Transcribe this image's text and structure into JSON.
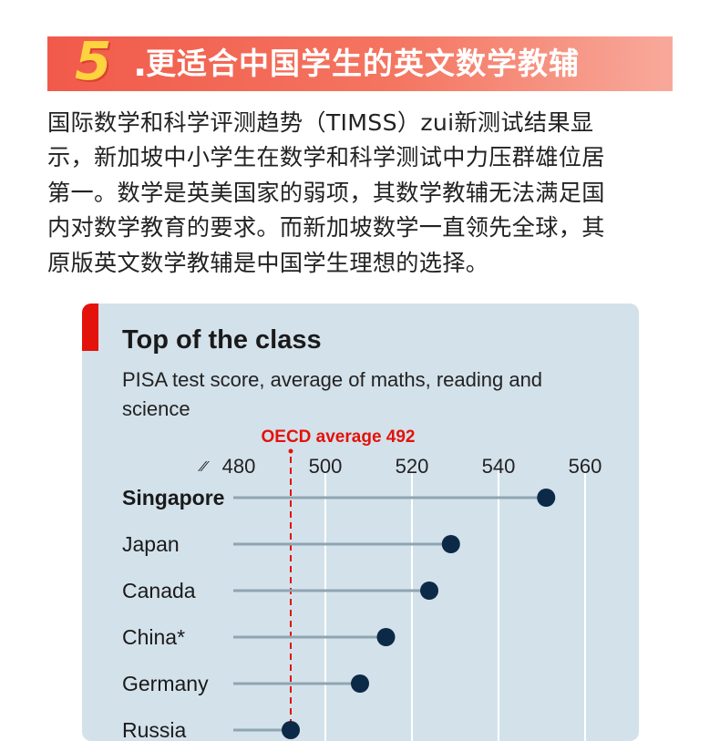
{
  "heading": {
    "number": "5",
    "dot": ".",
    "title": "更适合中国学生的英文数学教辅"
  },
  "intro_lines": [
    "国际数学和科学评测趋势（TIMSS）zui新测试结果显",
    "示，新加坡中小学生在数学和科学测试中力压群雄位居",
    "第一。数学是英美国家的弱项，其数学教辅无法满足国",
    "内对数学教育的要求。而新加坡数学一直领先全球，其",
    "原版英文数学教辅是中国学生理想的选择。"
  ],
  "colors": {
    "banner": "#f15a4b",
    "card_bg": "#d3e1ea",
    "accent": "#e3120b",
    "dot": "#0c2a47",
    "stem": "#8fa5b2",
    "grid": "#ffffff"
  },
  "chart_data": {
    "type": "scatter",
    "title": "Top of the class",
    "subtitle": "PISA test score, average of maths, reading and science",
    "axis_break_symbol": "⁄⁄",
    "xlim": [
      480,
      560
    ],
    "xticks": [
      480,
      500,
      520,
      540,
      560
    ],
    "reference_line": {
      "label": "OECD average 492",
      "value": 492
    },
    "categories": [
      "Singapore",
      "Japan",
      "Canada",
      "China*",
      "Germany",
      "Russia"
    ],
    "values": [
      551,
      529,
      524,
      514,
      508,
      492
    ],
    "highlight": "Singapore"
  }
}
